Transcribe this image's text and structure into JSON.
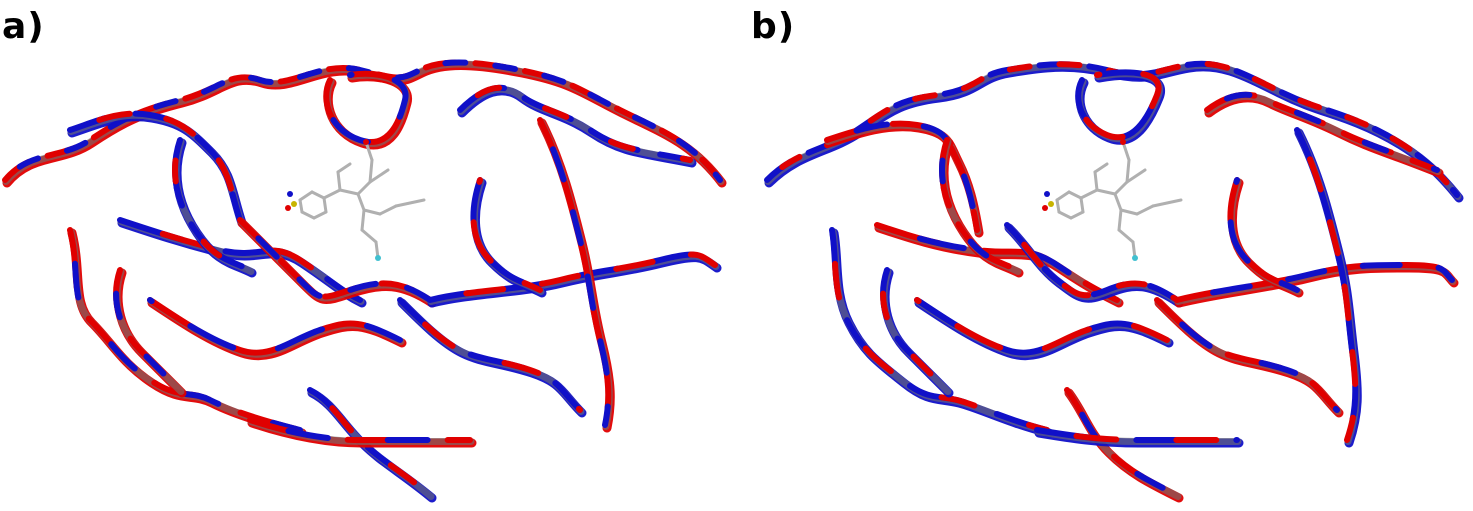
{
  "figure": {
    "panels": [
      {
        "label": "a)",
        "content": "protein-ribbon-ensemble-with-ligand"
      },
      {
        "label": "b)",
        "content": "protein-ribbon-ensemble-with-ligand"
      }
    ],
    "colors": {
      "ribbon_red": "#e00000",
      "ribbon_blue": "#1010c8",
      "ribbon_gray": "#707070",
      "ligand_gray": "#b0b0b0",
      "ligand_sulfur": "#c8b400",
      "ligand_nitrogen": "#1010c8",
      "ligand_oxygen": "#e00000",
      "ligand_fluorine": "#40c0d0"
    }
  }
}
